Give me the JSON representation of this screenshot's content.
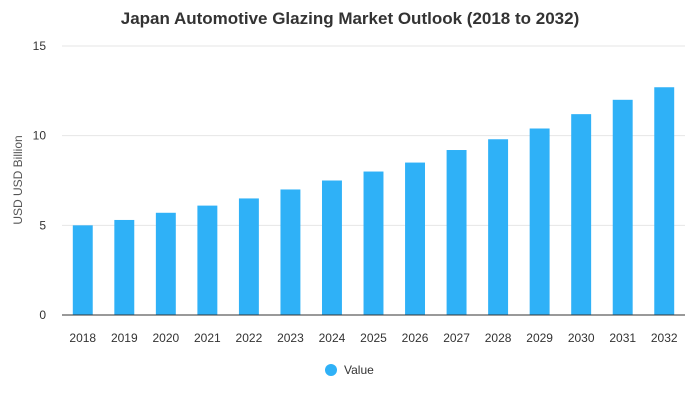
{
  "chart_data": {
    "type": "bar",
    "title": "Japan Automotive Glazing Market Outlook (2018 to 2032)",
    "ylabel": "USD USD Billion",
    "xlabel": "",
    "categories": [
      "2018",
      "2019",
      "2020",
      "2021",
      "2022",
      "2023",
      "2024",
      "2025",
      "2026",
      "2027",
      "2028",
      "2029",
      "2030",
      "2031",
      "2032"
    ],
    "series": [
      {
        "name": "Value",
        "values": [
          5.0,
          5.3,
          5.7,
          6.1,
          6.5,
          7.0,
          7.5,
          8.0,
          8.5,
          9.2,
          9.8,
          10.4,
          11.2,
          12.0,
          12.7
        ]
      }
    ],
    "yticks": [
      "0",
      "5",
      "10",
      "15"
    ],
    "ylim": [
      0,
      15
    ],
    "grid": true,
    "legend_position": "bottom-center",
    "colors": {
      "bar": "#2fb1f7",
      "grid": "#e6e6e6",
      "axis": "#333333"
    }
  }
}
